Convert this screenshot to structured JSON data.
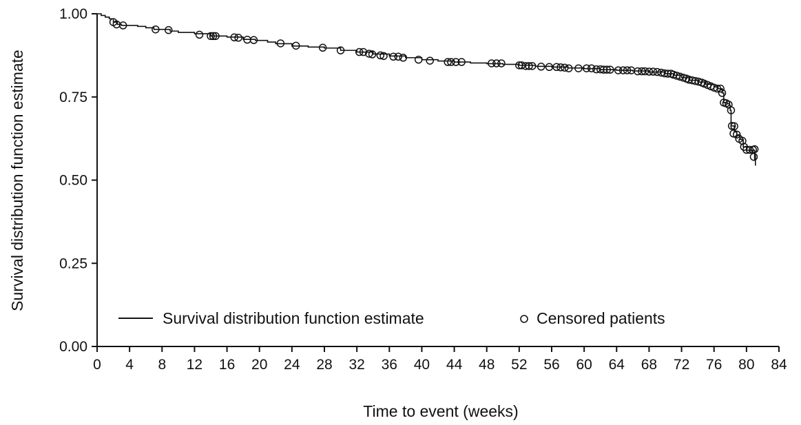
{
  "chart_data": {
    "type": "line",
    "xlabel": "Time to event (weeks)",
    "ylabel": "Survival distribution function estimate",
    "xlim": [
      0,
      84
    ],
    "ylim": [
      0,
      1
    ],
    "x_ticks": [
      0,
      4,
      8,
      12,
      16,
      20,
      24,
      28,
      32,
      36,
      40,
      44,
      48,
      52,
      56,
      60,
      64,
      68,
      72,
      76,
      80,
      84
    ],
    "x_tick_labels": [
      "0",
      "4",
      "8",
      "12",
      "16",
      "20",
      "24",
      "28",
      "32",
      "36",
      "40",
      "44",
      "48",
      "52",
      "56",
      "60",
      "64",
      "68",
      "72",
      "76",
      "80",
      "84"
    ],
    "y_ticks": [
      0,
      0.25,
      0.5,
      0.75,
      1.0
    ],
    "y_tick_labels": [
      "0.00",
      "0.25",
      "0.50",
      "0.75",
      "1.00"
    ],
    "grid": false,
    "legend_position": "bottom",
    "legend": {
      "line_label": "Survival distribution function estimate",
      "marker_label": "Censored patients"
    },
    "series": [
      {
        "kind": "step",
        "points": [
          [
            0,
            1.0
          ],
          [
            0.5,
            0.995
          ],
          [
            1.0,
            0.99
          ],
          [
            1.5,
            0.985
          ],
          [
            2.0,
            0.975
          ],
          [
            2.5,
            0.968
          ],
          [
            3.0,
            0.965
          ],
          [
            5.0,
            0.962
          ],
          [
            6.0,
            0.958
          ],
          [
            7.0,
            0.953
          ],
          [
            9.0,
            0.948
          ],
          [
            10.0,
            0.944
          ],
          [
            12.0,
            0.94
          ],
          [
            14.0,
            0.933
          ],
          [
            16.0,
            0.93
          ],
          [
            18.0,
            0.923
          ],
          [
            19.5,
            0.92
          ],
          [
            21.0,
            0.915
          ],
          [
            22.0,
            0.91
          ],
          [
            24.0,
            0.903
          ],
          [
            26.0,
            0.9
          ],
          [
            28.0,
            0.897
          ],
          [
            30.0,
            0.89
          ],
          [
            32.0,
            0.885
          ],
          [
            34.0,
            0.879
          ],
          [
            36.0,
            0.873
          ],
          [
            38.0,
            0.868
          ],
          [
            40.0,
            0.862
          ],
          [
            42.0,
            0.858
          ],
          [
            44.0,
            0.855
          ],
          [
            46.0,
            0.852
          ],
          [
            48.0,
            0.85
          ],
          [
            50.0,
            0.848
          ],
          [
            52.0,
            0.845
          ],
          [
            54.0,
            0.842
          ],
          [
            56.0,
            0.84
          ],
          [
            58.0,
            0.837
          ],
          [
            60.0,
            0.835
          ],
          [
            62.0,
            0.832
          ],
          [
            64.0,
            0.83
          ],
          [
            66.0,
            0.828
          ],
          [
            68.0,
            0.825
          ],
          [
            70.0,
            0.82
          ],
          [
            71.0,
            0.815
          ],
          [
            72.0,
            0.808
          ],
          [
            73.0,
            0.8
          ],
          [
            74.0,
            0.795
          ],
          [
            75.0,
            0.788
          ],
          [
            76.0,
            0.78
          ],
          [
            76.5,
            0.775
          ],
          [
            77.0,
            0.762
          ],
          [
            77.2,
            0.733
          ],
          [
            77.6,
            0.73
          ],
          [
            77.9,
            0.725
          ],
          [
            78.0,
            0.71
          ],
          [
            78.1,
            0.663
          ],
          [
            78.5,
            0.645
          ],
          [
            78.8,
            0.636
          ],
          [
            79.2,
            0.622
          ],
          [
            79.6,
            0.6
          ],
          [
            80.0,
            0.59
          ],
          [
            81.0,
            0.56
          ]
        ],
        "end_x": 81.1
      },
      {
        "kind": "censored",
        "points": [
          [
            2.0,
            0.975
          ],
          [
            2.4,
            0.968
          ],
          [
            3.2,
            0.965
          ],
          [
            7.2,
            0.953
          ],
          [
            8.8,
            0.951
          ],
          [
            12.6,
            0.937
          ],
          [
            14.0,
            0.933
          ],
          [
            14.3,
            0.933
          ],
          [
            14.6,
            0.933
          ],
          [
            16.9,
            0.929
          ],
          [
            17.4,
            0.928
          ],
          [
            18.5,
            0.922
          ],
          [
            19.3,
            0.921
          ],
          [
            22.6,
            0.911
          ],
          [
            24.5,
            0.904
          ],
          [
            27.8,
            0.898
          ],
          [
            30.0,
            0.89
          ],
          [
            32.3,
            0.885
          ],
          [
            32.8,
            0.885
          ],
          [
            33.5,
            0.88
          ],
          [
            33.9,
            0.878
          ],
          [
            34.9,
            0.875
          ],
          [
            35.3,
            0.873
          ],
          [
            36.5,
            0.871
          ],
          [
            37.1,
            0.871
          ],
          [
            37.7,
            0.868
          ],
          [
            39.6,
            0.862
          ],
          [
            41.0,
            0.859
          ],
          [
            43.2,
            0.855
          ],
          [
            43.6,
            0.855
          ],
          [
            44.2,
            0.855
          ],
          [
            44.9,
            0.855
          ],
          [
            48.6,
            0.851
          ],
          [
            49.2,
            0.851
          ],
          [
            49.8,
            0.851
          ],
          [
            52.0,
            0.845
          ],
          [
            52.3,
            0.845
          ],
          [
            52.8,
            0.843
          ],
          [
            53.2,
            0.843
          ],
          [
            53.6,
            0.843
          ],
          [
            54.7,
            0.841
          ],
          [
            55.7,
            0.84
          ],
          [
            56.6,
            0.84
          ],
          [
            57.1,
            0.839
          ],
          [
            57.6,
            0.838
          ],
          [
            58.1,
            0.836
          ],
          [
            59.3,
            0.836
          ],
          [
            60.3,
            0.836
          ],
          [
            60.9,
            0.836
          ],
          [
            61.5,
            0.833
          ],
          [
            62.0,
            0.833
          ],
          [
            62.4,
            0.832
          ],
          [
            62.8,
            0.832
          ],
          [
            63.2,
            0.832
          ],
          [
            64.2,
            0.83
          ],
          [
            64.8,
            0.83
          ],
          [
            65.3,
            0.83
          ],
          [
            65.8,
            0.83
          ],
          [
            66.6,
            0.827
          ],
          [
            67.1,
            0.827
          ],
          [
            67.5,
            0.827
          ],
          [
            68.0,
            0.826
          ],
          [
            68.5,
            0.826
          ],
          [
            69.0,
            0.825
          ],
          [
            69.5,
            0.823
          ],
          [
            69.9,
            0.821
          ],
          [
            70.3,
            0.82
          ],
          [
            70.7,
            0.82
          ],
          [
            71.0,
            0.817
          ],
          [
            71.4,
            0.814
          ],
          [
            71.8,
            0.811
          ],
          [
            72.2,
            0.808
          ],
          [
            72.6,
            0.805
          ],
          [
            72.9,
            0.802
          ],
          [
            73.3,
            0.8
          ],
          [
            73.7,
            0.798
          ],
          [
            74.1,
            0.796
          ],
          [
            74.5,
            0.793
          ],
          [
            74.8,
            0.79
          ],
          [
            75.2,
            0.786
          ],
          [
            75.6,
            0.782
          ],
          [
            76.0,
            0.778
          ],
          [
            76.4,
            0.775
          ],
          [
            76.8,
            0.775
          ],
          [
            77.0,
            0.762
          ],
          [
            77.2,
            0.733
          ],
          [
            77.5,
            0.731
          ],
          [
            77.8,
            0.727
          ],
          [
            78.1,
            0.71
          ],
          [
            78.2,
            0.663
          ],
          [
            78.5,
            0.662
          ],
          [
            78.4,
            0.64
          ],
          [
            78.8,
            0.637
          ],
          [
            79.1,
            0.624
          ],
          [
            79.5,
            0.618
          ],
          [
            79.7,
            0.6
          ],
          [
            80.0,
            0.591
          ],
          [
            80.4,
            0.591
          ],
          [
            80.8,
            0.591
          ],
          [
            81.0,
            0.593
          ],
          [
            80.9,
            0.57
          ]
        ]
      }
    ]
  }
}
